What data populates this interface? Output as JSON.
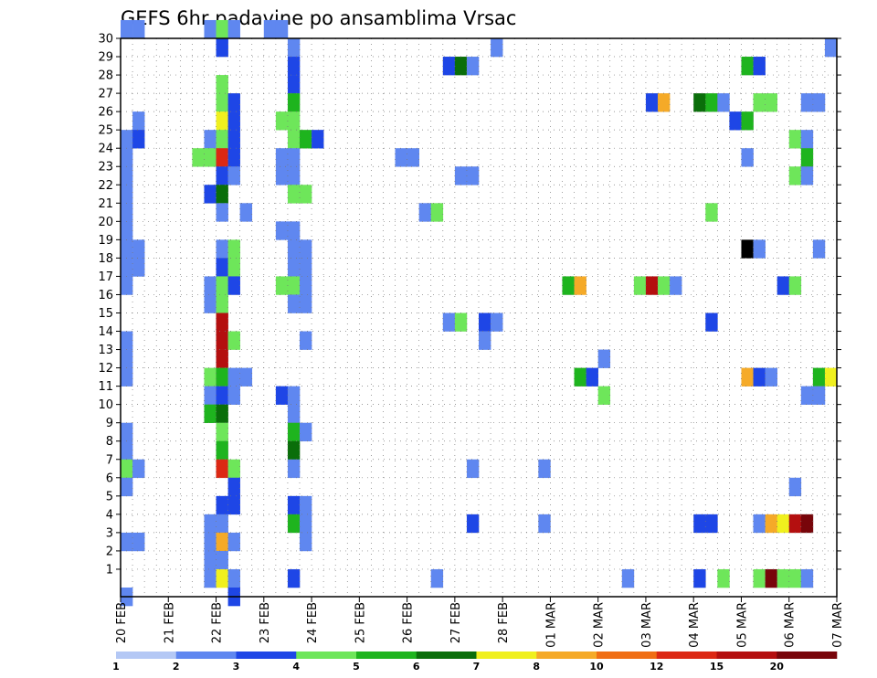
{
  "chart_data": {
    "type": "heatmap",
    "title": "GEFS 6hr padavine po ansamblima Vrsac",
    "y_ticks": [
      1,
      2,
      3,
      4,
      5,
      6,
      7,
      8,
      9,
      10,
      11,
      12,
      13,
      14,
      15,
      16,
      17,
      18,
      19,
      20,
      21,
      22,
      23,
      24,
      25,
      26,
      27,
      28,
      29,
      30
    ],
    "x_ticks": [
      "20 FEB",
      "21 FEB",
      "22 FEB",
      "23 FEB",
      "24 FEB",
      "25 FEB",
      "26 FEB",
      "27 FEB",
      "28 FEB",
      "01 MAR",
      "02 MAR",
      "03 MAR",
      "04 MAR",
      "05 MAR",
      "06 MAR",
      "07 MAR"
    ],
    "xlim": [
      0,
      60
    ],
    "ylim": [
      0,
      30
    ],
    "grid": true,
    "colorbar": {
      "labels": [
        "1",
        "2",
        "3",
        "4",
        "5",
        "6",
        "7",
        "8",
        "10",
        "12",
        "15",
        "20"
      ],
      "colors": [
        "#b4c8f5",
        "#5f87f0",
        "#1e46e6",
        "#6ee65a",
        "#1eb41e",
        "#0a6e0a",
        "#f0f01e",
        "#f5aa28",
        "#f06e14",
        "#dc2814",
        "#b40f0f",
        "#78050a"
      ]
    },
    "cells": [
      [
        0,
        30,
        1
      ],
      [
        1,
        30,
        1
      ],
      [
        7,
        30,
        1
      ],
      [
        8,
        30,
        3
      ],
      [
        9,
        30,
        1
      ],
      [
        12,
        30,
        1
      ],
      [
        13,
        30,
        1
      ],
      [
        8,
        29,
        2
      ],
      [
        14,
        29,
        1
      ],
      [
        31,
        29,
        1
      ],
      [
        59,
        29,
        1
      ],
      [
        14,
        28,
        2
      ],
      [
        27,
        28,
        2
      ],
      [
        28,
        28,
        5
      ],
      [
        29,
        28,
        1
      ],
      [
        52,
        28,
        4
      ],
      [
        53,
        28,
        2
      ],
      [
        8,
        27,
        3
      ],
      [
        14,
        27,
        2
      ],
      [
        8,
        26,
        3
      ],
      [
        9,
        26,
        2
      ],
      [
        14,
        26,
        4
      ],
      [
        44,
        26,
        2
      ],
      [
        45,
        26,
        7
      ],
      [
        48,
        26,
        5
      ],
      [
        49,
        26,
        4
      ],
      [
        50,
        26,
        1
      ],
      [
        53,
        26,
        3
      ],
      [
        54,
        26,
        3
      ],
      [
        57,
        26,
        1
      ],
      [
        58,
        26,
        1
      ],
      [
        1,
        25,
        1
      ],
      [
        8,
        25,
        6
      ],
      [
        9,
        25,
        2
      ],
      [
        13,
        25,
        3
      ],
      [
        14,
        25,
        3
      ],
      [
        51,
        25,
        2
      ],
      [
        52,
        25,
        4
      ],
      [
        0,
        24,
        1
      ],
      [
        1,
        24,
        2
      ],
      [
        7,
        24,
        1
      ],
      [
        8,
        24,
        3
      ],
      [
        9,
        24,
        2
      ],
      [
        14,
        24,
        3
      ],
      [
        15,
        24,
        4
      ],
      [
        16,
        24,
        2
      ],
      [
        56,
        24,
        3
      ],
      [
        57,
        24,
        1
      ],
      [
        0,
        23,
        1
      ],
      [
        6,
        23,
        3
      ],
      [
        7,
        23,
        3
      ],
      [
        8,
        23,
        9
      ],
      [
        9,
        23,
        2
      ],
      [
        13,
        23,
        1
      ],
      [
        14,
        23,
        1
      ],
      [
        23,
        23,
        1
      ],
      [
        24,
        23,
        1
      ],
      [
        52,
        23,
        1
      ],
      [
        57,
        23,
        4
      ],
      [
        0,
        22,
        1
      ],
      [
        8,
        22,
        2
      ],
      [
        9,
        22,
        1
      ],
      [
        13,
        22,
        1
      ],
      [
        14,
        22,
        1
      ],
      [
        28,
        22,
        1
      ],
      [
        29,
        22,
        1
      ],
      [
        56,
        22,
        3
      ],
      [
        57,
        22,
        1
      ],
      [
        0,
        21,
        1
      ],
      [
        7,
        21,
        2
      ],
      [
        8,
        21,
        5
      ],
      [
        14,
        21,
        3
      ],
      [
        15,
        21,
        3
      ],
      [
        0,
        20,
        1
      ],
      [
        8,
        20,
        1
      ],
      [
        10,
        20,
        1
      ],
      [
        25,
        20,
        1
      ],
      [
        26,
        20,
        3
      ],
      [
        49,
        20,
        3
      ],
      [
        0,
        19,
        1
      ],
      [
        13,
        19,
        1
      ],
      [
        14,
        19,
        1
      ],
      [
        0,
        18,
        1
      ],
      [
        1,
        18,
        1
      ],
      [
        8,
        18,
        1
      ],
      [
        9,
        18,
        3
      ],
      [
        14,
        18,
        1
      ],
      [
        15,
        18,
        1
      ],
      [
        52,
        18,
        12
      ],
      [
        53,
        18,
        1
      ],
      [
        58,
        18,
        1
      ],
      [
        0,
        17,
        1
      ],
      [
        1,
        17,
        1
      ],
      [
        8,
        17,
        2
      ],
      [
        9,
        17,
        3
      ],
      [
        14,
        17,
        1
      ],
      [
        15,
        17,
        1
      ],
      [
        0,
        16,
        1
      ],
      [
        7,
        16,
        1
      ],
      [
        8,
        16,
        3
      ],
      [
        9,
        16,
        2
      ],
      [
        13,
        16,
        3
      ],
      [
        14,
        16,
        3
      ],
      [
        15,
        16,
        1
      ],
      [
        37,
        16,
        4
      ],
      [
        38,
        16,
        7
      ],
      [
        43,
        16,
        3
      ],
      [
        44,
        16,
        10
      ],
      [
        45,
        16,
        3
      ],
      [
        46,
        16,
        1
      ],
      [
        55,
        16,
        2
      ],
      [
        56,
        16,
        3
      ],
      [
        7,
        15,
        1
      ],
      [
        8,
        15,
        3
      ],
      [
        14,
        15,
        1
      ],
      [
        15,
        15,
        1
      ],
      [
        8,
        14,
        10
      ],
      [
        27,
        14,
        1
      ],
      [
        28,
        14,
        3
      ],
      [
        30,
        14,
        2
      ],
      [
        31,
        14,
        1
      ],
      [
        49,
        14,
        2
      ],
      [
        0,
        13,
        1
      ],
      [
        8,
        13,
        10
      ],
      [
        9,
        13,
        3
      ],
      [
        15,
        13,
        1
      ],
      [
        30,
        13,
        1
      ],
      [
        0,
        12,
        1
      ],
      [
        8,
        12,
        10
      ],
      [
        40,
        12,
        1
      ],
      [
        0,
        11,
        1
      ],
      [
        7,
        11,
        3
      ],
      [
        8,
        11,
        4
      ],
      [
        9,
        11,
        1
      ],
      [
        10,
        11,
        1
      ],
      [
        38,
        11,
        4
      ],
      [
        39,
        11,
        2
      ],
      [
        52,
        11,
        7
      ],
      [
        53,
        11,
        2
      ],
      [
        54,
        11,
        1
      ],
      [
        58,
        11,
        4
      ],
      [
        59,
        11,
        6
      ],
      [
        7,
        10,
        1
      ],
      [
        8,
        10,
        2
      ],
      [
        9,
        10,
        1
      ],
      [
        13,
        10,
        2
      ],
      [
        14,
        10,
        1
      ],
      [
        40,
        10,
        3
      ],
      [
        57,
        10,
        1
      ],
      [
        58,
        10,
        1
      ],
      [
        7,
        9,
        4
      ],
      [
        8,
        9,
        5
      ],
      [
        14,
        9,
        1
      ],
      [
        0,
        8,
        1
      ],
      [
        8,
        8,
        3
      ],
      [
        14,
        8,
        4
      ],
      [
        15,
        8,
        1
      ],
      [
        0,
        7,
        1
      ],
      [
        8,
        7,
        4
      ],
      [
        14,
        7,
        5
      ],
      [
        0,
        6,
        3
      ],
      [
        1,
        6,
        1
      ],
      [
        8,
        6,
        9
      ],
      [
        9,
        6,
        3
      ],
      [
        14,
        6,
        1
      ],
      [
        29,
        6,
        1
      ],
      [
        35,
        6,
        1
      ],
      [
        0,
        5,
        1
      ],
      [
        9,
        5,
        2
      ],
      [
        56,
        5,
        1
      ],
      [
        8,
        4,
        2
      ],
      [
        9,
        4,
        2
      ],
      [
        14,
        4,
        2
      ],
      [
        15,
        4,
        1
      ],
      [
        7,
        3,
        1
      ],
      [
        8,
        3,
        1
      ],
      [
        14,
        3,
        4
      ],
      [
        15,
        3,
        1
      ],
      [
        29,
        3,
        2
      ],
      [
        35,
        3,
        1
      ],
      [
        48,
        3,
        2
      ],
      [
        49,
        3,
        2
      ],
      [
        53,
        3,
        1
      ],
      [
        54,
        3,
        7
      ],
      [
        55,
        3,
        6
      ],
      [
        56,
        3,
        10
      ],
      [
        57,
        3,
        11
      ],
      [
        0,
        2,
        1
      ],
      [
        1,
        2,
        1
      ],
      [
        7,
        2,
        1
      ],
      [
        8,
        2,
        7
      ],
      [
        9,
        2,
        1
      ],
      [
        15,
        2,
        1
      ],
      [
        7,
        1,
        1
      ],
      [
        8,
        1,
        1
      ],
      [
        7,
        0,
        1
      ],
      [
        8,
        0,
        6
      ],
      [
        9,
        0,
        1
      ],
      [
        14,
        0,
        2
      ],
      [
        26,
        0,
        1
      ],
      [
        42,
        0,
        1
      ],
      [
        48,
        0,
        2
      ],
      [
        50,
        0,
        3
      ],
      [
        53,
        0,
        3
      ],
      [
        54,
        0,
        11
      ],
      [
        55,
        0,
        3
      ],
      [
        56,
        0,
        3
      ],
      [
        57,
        0,
        1
      ],
      [
        0,
        -1,
        1
      ],
      [
        9,
        -1,
        2
      ]
    ]
  }
}
